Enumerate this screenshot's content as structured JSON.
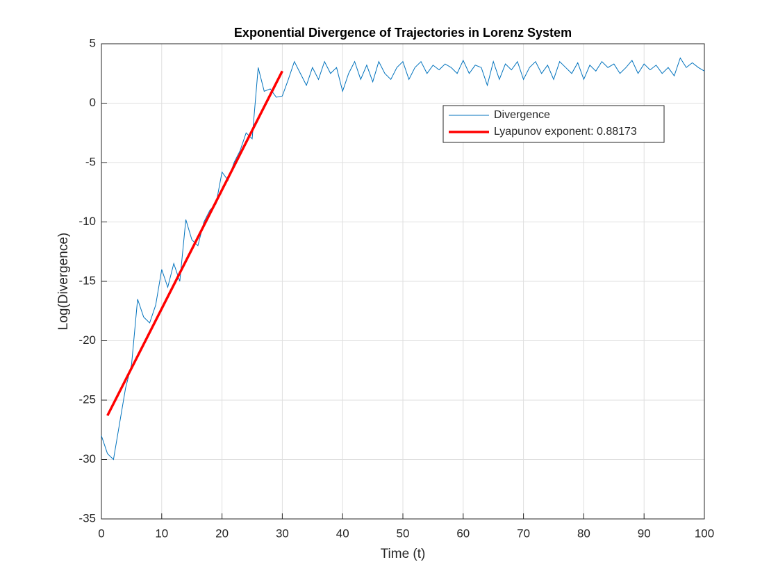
{
  "chart_data": {
    "type": "line",
    "title": "Exponential Divergence of Trajectories in Lorenz System",
    "xlabel": "Time (t)",
    "ylabel": "Log(Divergence)",
    "xlim": [
      0,
      100
    ],
    "ylim": [
      -35,
      5
    ],
    "xticks": [
      0,
      10,
      20,
      30,
      40,
      50,
      60,
      70,
      80,
      90,
      100
    ],
    "yticks": [
      -35,
      -30,
      -25,
      -20,
      -15,
      -10,
      -5,
      0,
      5
    ],
    "grid": true,
    "legend": "upper right",
    "series": [
      {
        "name": "Divergence",
        "color": "#0072bd",
        "width": 1,
        "x": [
          0,
          1,
          2,
          3,
          4,
          5,
          6,
          7,
          8,
          9,
          10,
          11,
          12,
          13,
          14,
          15,
          16,
          17,
          18,
          19,
          20,
          21,
          22,
          23,
          24,
          25,
          26,
          27,
          28,
          29,
          30,
          31,
          32,
          33,
          34,
          35,
          36,
          37,
          38,
          39,
          40,
          41,
          42,
          43,
          44,
          45,
          46,
          47,
          48,
          49,
          50,
          51,
          52,
          53,
          54,
          55,
          56,
          57,
          58,
          59,
          60,
          61,
          62,
          63,
          64,
          65,
          66,
          67,
          68,
          69,
          70,
          71,
          72,
          73,
          74,
          75,
          76,
          77,
          78,
          79,
          80,
          81,
          82,
          83,
          84,
          85,
          86,
          87,
          88,
          89,
          90,
          91,
          92,
          93,
          94,
          95,
          96,
          97,
          98,
          99,
          100
        ],
        "values": [
          -28,
          -29.5,
          -30,
          -27,
          -24,
          -22,
          -16.5,
          -18,
          -18.5,
          -17,
          -14,
          -15.5,
          -13.5,
          -15,
          -9.8,
          -11.5,
          -12,
          -10,
          -9,
          -8.5,
          -5.8,
          -6.5,
          -5,
          -4,
          -2.5,
          -3,
          3,
          1,
          1.2,
          0.5,
          0.6,
          2,
          3.5,
          2.5,
          1.5,
          3,
          2,
          3.5,
          2.5,
          3,
          1,
          2.5,
          3.5,
          2,
          3.2,
          1.8,
          3.5,
          2.5,
          2,
          3,
          3.5,
          2,
          3,
          3.5,
          2.5,
          3.2,
          2.8,
          3.3,
          3,
          2.5,
          3.6,
          2.5,
          3.2,
          3,
          1.5,
          3.5,
          2,
          3.3,
          2.8,
          3.5,
          2,
          3,
          3.5,
          2.5,
          3.2,
          2,
          3.5,
          3,
          2.5,
          3.4,
          2,
          3.2,
          2.7,
          3.5,
          3,
          3.3,
          2.5,
          3,
          3.6,
          2.5,
          3.3,
          2.8,
          3.2,
          2.5,
          3,
          2.3,
          3.8,
          3,
          3.4,
          3,
          2.7
        ]
      },
      {
        "name": "Lyapunov exponent: 0.88173",
        "color": "#ff0000",
        "width": 3.5,
        "x": [
          1,
          30
        ],
        "values": [
          -26.3,
          2.7
        ]
      }
    ]
  }
}
